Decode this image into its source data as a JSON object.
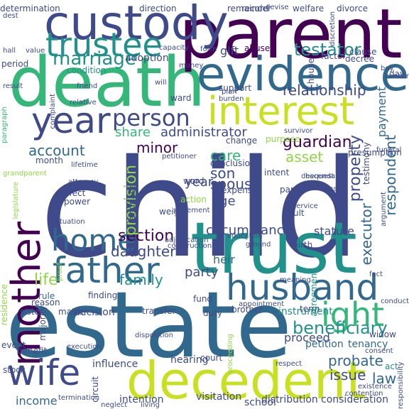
{
  "palette": {
    "purple": "#440154",
    "indigo": "#3e4a89",
    "slate": "#31688e",
    "teal": "#21918c",
    "green": "#35b779",
    "lime": "#90d743",
    "yellow": "#c8e020"
  },
  "words": [
    {
      "text": "child",
      "color": "indigo"
    },
    {
      "text": "estate",
      "color": "slate"
    },
    {
      "text": "trust",
      "color": "teal"
    },
    {
      "text": "death",
      "color": "green"
    },
    {
      "text": "parent",
      "color": "purple"
    },
    {
      "text": "custody",
      "color": "indigo"
    },
    {
      "text": "decedent",
      "color": "yellow"
    },
    {
      "text": "evidence",
      "color": "slate"
    },
    {
      "text": "interest",
      "color": "yellow"
    },
    {
      "text": "husband",
      "color": "slate"
    },
    {
      "text": "mother",
      "color": "purple"
    },
    {
      "text": "father",
      "color": "slate"
    },
    {
      "text": "home",
      "color": "slate"
    },
    {
      "text": "wife",
      "color": "indigo"
    },
    {
      "text": "year",
      "color": "indigo"
    },
    {
      "text": "trustee",
      "color": "teal"
    },
    {
      "text": "ight",
      "color": "green"
    },
    {
      "text": "person",
      "color": "indigo"
    },
    {
      "text": "marriage",
      "color": "teal"
    },
    {
      "text": "beneficiary",
      "color": "teal"
    },
    {
      "text": "testator",
      "color": "teal"
    },
    {
      "text": "relationship",
      "color": "indigo"
    },
    {
      "text": "administrator",
      "color": "indigo"
    },
    {
      "text": "account",
      "color": "slate"
    },
    {
      "text": "minor",
      "color": "purple"
    },
    {
      "text": "guardian",
      "color": "purple"
    },
    {
      "text": "asset",
      "color": "lime"
    },
    {
      "text": "property",
      "color": "indigo"
    },
    {
      "text": "respondent",
      "color": "slate"
    },
    {
      "text": "executor",
      "color": "slate"
    },
    {
      "text": "section",
      "color": "purple"
    },
    {
      "text": "daughter",
      "color": "indigo"
    },
    {
      "text": "circumstance",
      "color": "indigo"
    },
    {
      "text": "statute",
      "color": "indigo"
    },
    {
      "text": "son",
      "color": "indigo"
    },
    {
      "text": "spouse",
      "color": "indigo"
    },
    {
      "text": "share",
      "color": "green"
    },
    {
      "text": "care",
      "color": "green"
    },
    {
      "text": "provision",
      "color": "lime"
    },
    {
      "text": "family",
      "color": "teal"
    },
    {
      "text": "life",
      "color": "lime"
    },
    {
      "text": "party",
      "color": "indigo"
    },
    {
      "text": "probate",
      "color": "slate"
    },
    {
      "text": "issue",
      "color": "indigo"
    },
    {
      "text": "law",
      "color": "slate"
    },
    {
      "text": "income",
      "color": "slate"
    },
    {
      "text": "decision",
      "color": "indigo"
    },
    {
      "text": "visitation",
      "color": "indigo"
    },
    {
      "text": "school",
      "color": "indigo"
    },
    {
      "text": "distribution",
      "color": "indigo"
    },
    {
      "text": "consideration",
      "color": "indigo"
    },
    {
      "text": "intention",
      "color": "indigo"
    },
    {
      "text": "hearing",
      "color": "indigo"
    },
    {
      "text": "gift",
      "color": "indigo"
    },
    {
      "text": "payment",
      "color": "slate"
    },
    {
      "text": "year",
      "color": "indigo"
    },
    {
      "text": "age",
      "color": "indigo"
    },
    {
      "text": "heir",
      "color": "slate"
    },
    {
      "text": "proceed",
      "color": "indigo"
    },
    {
      "text": "instrument",
      "color": "teal"
    },
    {
      "text": "tenancy",
      "color": "slate"
    },
    {
      "text": "petition",
      "color": "slate"
    },
    {
      "text": "influence",
      "color": "indigo"
    },
    {
      "text": "adoption",
      "color": "indigo"
    },
    {
      "text": "determination",
      "color": "indigo"
    },
    {
      "text": "direction",
      "color": "indigo"
    },
    {
      "text": "remainder",
      "color": "indigo"
    },
    {
      "text": "record",
      "color": "indigo"
    },
    {
      "text": "welfare",
      "color": "indigo"
    },
    {
      "text": "divorce",
      "color": "indigo"
    },
    {
      "text": "clause",
      "color": "indigo"
    },
    {
      "text": "decree",
      "color": "indigo"
    },
    {
      "text": "abuse",
      "color": "purple"
    },
    {
      "text": "factor",
      "color": "indigo"
    },
    {
      "text": "period",
      "color": "indigo"
    },
    {
      "text": "condition",
      "color": "teal"
    },
    {
      "text": "support",
      "color": "indigo"
    },
    {
      "text": "presumption",
      "color": "indigo"
    },
    {
      "text": "purpose",
      "color": "lime"
    },
    {
      "text": "conclusion",
      "color": "indigo"
    },
    {
      "text": "intent",
      "color": "indigo"
    },
    {
      "text": "effect",
      "color": "indigo"
    },
    {
      "text": "power",
      "color": "indigo"
    },
    {
      "text": "month",
      "color": "indigo"
    },
    {
      "text": "rule",
      "color": "slate"
    },
    {
      "text": "majority",
      "color": "indigo"
    },
    {
      "text": "finding",
      "color": "indigo"
    },
    {
      "text": "sister",
      "color": "indigo"
    },
    {
      "text": "matter",
      "color": "indigo"
    },
    {
      "text": "fund",
      "color": "indigo"
    },
    {
      "text": "duty",
      "color": "indigo"
    },
    {
      "text": "brother",
      "color": "indigo"
    },
    {
      "text": "term",
      "color": "indigo"
    },
    {
      "text": "birth",
      "color": "indigo"
    },
    {
      "text": "agreement",
      "color": "teal"
    },
    {
      "text": "testimony",
      "color": "indigo"
    },
    {
      "text": "widow",
      "color": "indigo"
    },
    {
      "text": "benefit",
      "color": "indigo"
    },
    {
      "text": "stock",
      "color": "indigo"
    },
    {
      "text": "reason",
      "color": "indigo"
    },
    {
      "text": "transfer",
      "color": "indigo"
    },
    {
      "text": "word",
      "color": "indigo"
    },
    {
      "text": "action",
      "color": "lime"
    },
    {
      "text": "weight",
      "color": "indigo"
    },
    {
      "text": "change",
      "color": "indigo"
    },
    {
      "text": "ward",
      "color": "indigo"
    },
    {
      "text": "house",
      "color": "indigo"
    },
    {
      "text": "circuit",
      "color": "indigo"
    },
    {
      "text": "court",
      "color": "indigo"
    },
    {
      "text": "residence",
      "color": "lime"
    },
    {
      "text": "day",
      "color": "indigo"
    },
    {
      "text": "capacity",
      "color": "indigo"
    },
    {
      "text": "form",
      "color": "indigo"
    },
    {
      "text": "money",
      "color": "indigo"
    },
    {
      "text": "adult",
      "color": "indigo"
    },
    {
      "text": "language",
      "color": "indigo"
    },
    {
      "text": "expense",
      "color": "indigo"
    },
    {
      "text": "par",
      "color": "indigo"
    },
    {
      "text": "act",
      "color": "teal"
    },
    {
      "text": "descendant",
      "color": "indigo"
    },
    {
      "text": "petitioner",
      "color": "indigo"
    },
    {
      "text": "attorney",
      "color": "indigo"
    },
    {
      "text": "appointment",
      "color": "indigo"
    },
    {
      "text": "meaning",
      "color": "indigo"
    },
    {
      "text": "burden",
      "color": "indigo"
    },
    {
      "text": "plan",
      "color": "indigo"
    },
    {
      "text": "event",
      "color": "indigo"
    },
    {
      "text": "proof",
      "color": "lime"
    },
    {
      "text": "conduct",
      "color": "indigo"
    },
    {
      "text": "friend",
      "color": "indigo"
    },
    {
      "text": "result",
      "color": "indigo"
    },
    {
      "text": "hall",
      "color": "indigo"
    },
    {
      "text": "value",
      "color": "indigo"
    },
    {
      "text": "complaint",
      "color": "indigo"
    },
    {
      "text": "will",
      "color": "indigo"
    },
    {
      "text": "education",
      "color": "indigo"
    },
    {
      "text": "ground",
      "color": "indigo"
    },
    {
      "text": "proceeding",
      "color": "lime"
    },
    {
      "text": "respect",
      "color": "indigo"
    },
    {
      "text": "existence",
      "color": "indigo"
    },
    {
      "text": "consent",
      "color": "indigo"
    },
    {
      "text": "contention",
      "color": "indigo"
    },
    {
      "text": "class",
      "color": "indigo"
    },
    {
      "text": "service",
      "color": "indigo"
    },
    {
      "text": "argument",
      "color": "indigo"
    },
    {
      "text": "funeral",
      "color": "indigo"
    },
    {
      "text": "survivor",
      "color": "indigo"
    },
    {
      "text": "boy",
      "color": "indigo"
    },
    {
      "text": "concur",
      "color": "indigo"
    },
    {
      "text": "lifetime",
      "color": "indigo"
    },
    {
      "text": "grandparent",
      "color": "lime"
    },
    {
      "text": "paragraph",
      "color": "green"
    },
    {
      "text": "legislature",
      "color": "lime"
    },
    {
      "text": "disposition",
      "color": "indigo"
    },
    {
      "text": "execution",
      "color": "indigo"
    },
    {
      "text": "statement",
      "color": "indigo"
    },
    {
      "text": "adjudication",
      "color": "indigo"
    },
    {
      "text": "construction",
      "color": "indigo"
    },
    {
      "text": "termination",
      "color": "indigo"
    },
    {
      "text": "living",
      "color": "indigo"
    },
    {
      "text": "neglect",
      "color": "indigo"
    },
    {
      "text": "responsibility",
      "color": "indigo"
    },
    {
      "text": "discretion",
      "color": "indigo"
    },
    {
      "text": "devise",
      "color": "indigo"
    },
    {
      "text": "bequest",
      "color": "indigo"
    },
    {
      "text": "situation",
      "color": "indigo"
    },
    {
      "text": "relative",
      "color": "indigo"
    },
    {
      "text": "dest",
      "color": "indigo"
    },
    {
      "text": "fact",
      "color": "indigo"
    }
  ]
}
